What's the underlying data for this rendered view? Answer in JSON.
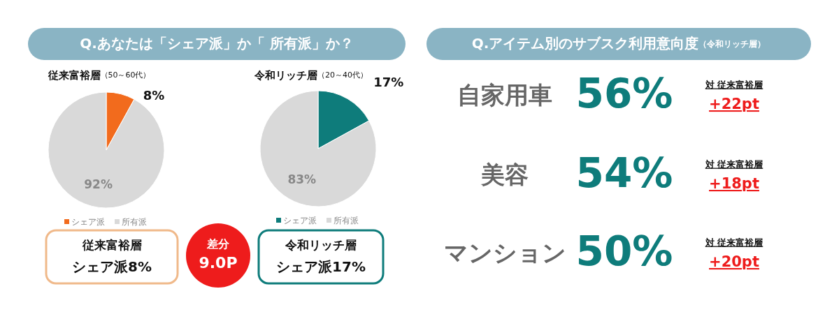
{
  "chart_data": [
    {
      "type": "other",
      "title": "Q.あなたは「シェア派」か「 所有派」か？",
      "annotations": [
        "従来富裕層",
        "シェア派8%",
        "差分",
        "9.0P",
        "令和リッチ層",
        "シェア派17%"
      ]
    },
    {
      "type": "pie",
      "title": "従来富裕層",
      "subtitle": "（50～60代）",
      "categories": [
        "シェア派",
        "所有派"
      ],
      "values": [
        8,
        92
      ],
      "colors": [
        "#f26b1d",
        "#d9d9d9"
      ],
      "value_labels": [
        "8%",
        "92%"
      ],
      "legend": "bottom"
    },
    {
      "type": "pie",
      "title": "令和リッチ層",
      "subtitle": "（20～40代）",
      "categories": [
        "シェア派",
        "所有派"
      ],
      "values": [
        17,
        83
      ],
      "colors": [
        "#0e7c7b",
        "#d9d9d9"
      ],
      "value_labels": [
        "17%",
        "83%"
      ],
      "legend": "bottom"
    },
    {
      "type": "other",
      "title": "Q.アイテム別のサブスク利用意向度",
      "subtitle": "（令和リッチ層）",
      "categories": [
        "自家用車",
        "美容",
        "マンション"
      ],
      "value_labels": [
        "56%",
        "54%",
        "50%"
      ],
      "annotations": [
        "対 従来富裕層",
        "+22pt",
        "対 従来富裕層",
        "+18pt",
        "対 従来富裕層",
        "+20pt"
      ]
    }
  ]
}
